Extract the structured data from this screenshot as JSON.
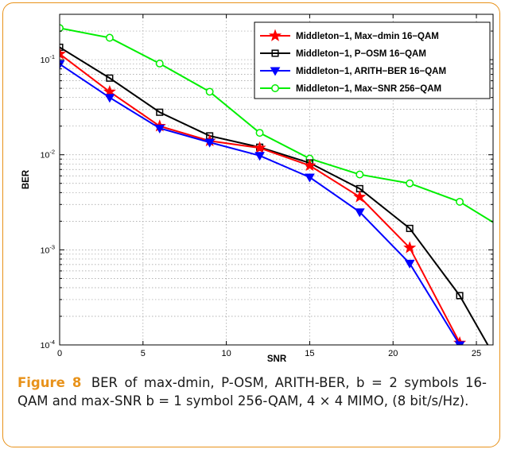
{
  "chart_data": {
    "type": "line",
    "title": "",
    "xlabel": "SNR",
    "ylabel": "BER",
    "xlim": [
      0,
      26
    ],
    "ylim": [
      0.0001,
      0.3
    ],
    "yscale": "log",
    "grid": true,
    "legend_position": "top-right",
    "x_ticks": [
      "0",
      "5",
      "10",
      "15",
      "20",
      "25"
    ],
    "y_ticks": [
      {
        "value": 0.1,
        "base": "10",
        "exp": "-1"
      },
      {
        "value": 0.01,
        "base": "10",
        "exp": "-2"
      },
      {
        "value": 0.001,
        "base": "10",
        "exp": "-3"
      },
      {
        "value": 0.0001,
        "base": "10",
        "exp": "-4"
      }
    ],
    "series": [
      {
        "name": "Middleton−1, Max−dmin 16−QAM",
        "color": "#ff0000",
        "marker": "star",
        "x": [
          0,
          3,
          6,
          9,
          12,
          15,
          18,
          21,
          24,
          25
        ],
        "y": [
          0.115,
          0.046,
          0.02,
          0.014,
          0.0118,
          0.0077,
          0.0036,
          0.00105,
          0.000105,
          5e-05
        ]
      },
      {
        "name": "Middleton−1, P−OSM  16−QAM",
        "color": "#000000",
        "marker": "square",
        "x": [
          0,
          3,
          6,
          9,
          12,
          15,
          18,
          21,
          24,
          26
        ],
        "y": [
          0.135,
          0.064,
          0.028,
          0.0158,
          0.012,
          0.0082,
          0.0044,
          0.00168,
          0.00033,
          8e-05
        ]
      },
      {
        "name": "Middleton−1, ARITH−BER 16−QAM",
        "color": "#0000ff",
        "marker": "triangle-down",
        "x": [
          0,
          3,
          6,
          9,
          12,
          15,
          18,
          21,
          24,
          25
        ],
        "y": [
          0.09,
          0.04,
          0.019,
          0.0135,
          0.0098,
          0.0058,
          0.0025,
          0.00072,
          0.0001,
          5e-05
        ]
      },
      {
        "name": "Middleton−1, Max−SNR 256−QAM",
        "color": "#00ee00",
        "marker": "circle",
        "x": [
          0,
          3,
          6,
          9,
          12,
          15,
          18,
          21,
          24,
          26
        ],
        "y": [
          0.215,
          0.17,
          0.091,
          0.046,
          0.017,
          0.0091,
          0.0062,
          0.005,
          0.0032,
          0.00195
        ]
      }
    ]
  },
  "caption": {
    "figure_label": "Figure 8",
    "text": "BER of max-dmin, P-OSM, ARITH-BER, b = 2 symbols 16-QAM and max-SNR b = 1 symbol 256-QAM, 4 × 4 MIMO, (8 bit/s/Hz)."
  }
}
